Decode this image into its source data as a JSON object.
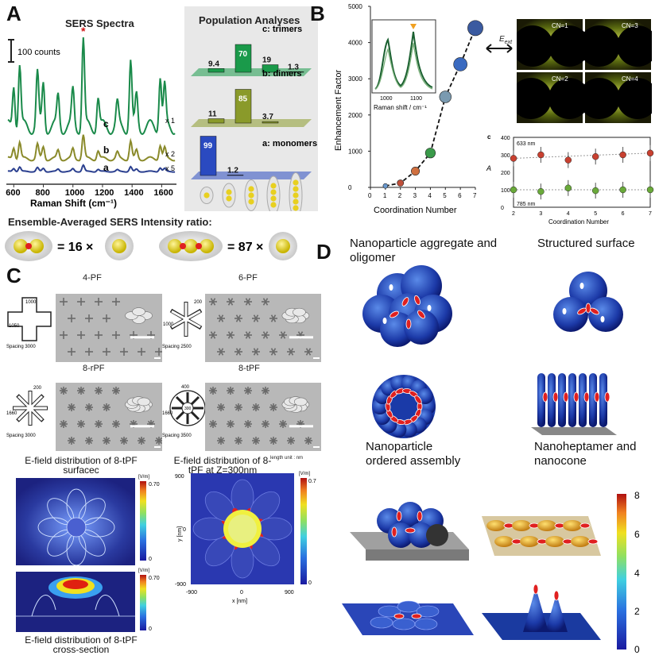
{
  "panels": {
    "A": "A",
    "B": "B",
    "C": "C",
    "D": "D"
  },
  "panelA": {
    "spectra_title": "SERS Spectra",
    "scale_bar": "100 counts",
    "xlabel": "Raman Shift (cm⁻¹)",
    "xticks": [
      "600",
      "800",
      "1000",
      "1200",
      "1400",
      "1600"
    ],
    "curve_labels": [
      "c",
      "b",
      "a"
    ],
    "multipliers": [
      "x 1",
      "x 2",
      "x 5"
    ],
    "star": "*",
    "pop_title": "Population Analyses",
    "pop_groups": [
      {
        "label": "c: trimers",
        "values": [
          "9.4",
          "70",
          "19",
          "1.3"
        ]
      },
      {
        "label": "b: dimers",
        "values": [
          "11",
          "85",
          "3.7"
        ]
      },
      {
        "label": "a: monomers",
        "values": [
          "99",
          "1.2"
        ]
      }
    ],
    "ratio_title": "Ensemble-Averaged SERS Intensity ratio:",
    "ratio_dimer": "= 16 ×",
    "ratio_trimer": "= 87 ×"
  },
  "panelB": {
    "ylabel": "Enhancement Factor",
    "xlabel": "Coordination Number",
    "yticks": [
      "0",
      "1000",
      "2000",
      "3000",
      "4000",
      "5000"
    ],
    "xticks": [
      "0",
      "1",
      "2",
      "3",
      "4",
      "5",
      "6",
      "7"
    ],
    "inset_xlabel": "Raman shift / cm⁻¹",
    "inset_xticks": [
      "1000",
      "1100"
    ],
    "eext": "E",
    "eext_sub": "ext",
    "cn_labels": [
      "CN=1",
      "CN=3",
      "CN=2",
      "CN=4"
    ],
    "small_label": "c",
    "small_ylabel": "A",
    "small_xlabel": "Coordination Number",
    "small_yticks": [
      "0",
      "100",
      "200",
      "300",
      "400"
    ],
    "small_xticks": [
      "2",
      "3",
      "4",
      "5",
      "6",
      "7"
    ],
    "nm633": "633 nm",
    "nm785": "785 nm"
  },
  "panelC": {
    "titles": [
      "4-PF",
      "6-PF",
      "8-rPF",
      "8-tPF"
    ],
    "spacings": [
      "Spacing 3000",
      "Spacing 2500",
      "Spacing 3000",
      "Spacing 3500"
    ],
    "dims": [
      "1000",
      "1050",
      "200",
      "1000",
      "200",
      "1660",
      "400",
      "1660",
      "300"
    ],
    "cap1": "E-field distribution of 8-tPF surfacec",
    "cap2": "E-field distribution of 8-tPF at Z=300nm",
    "cap2_unit": "length unit : nm",
    "cap3": "E-field distribution of 8-tPF cross-section",
    "cbar_unit": "[V/m]",
    "cbar_a": [
      "0.70",
      "0"
    ],
    "cbar_b": [
      "0.7",
      "0"
    ],
    "cbar_c": [
      "0.70",
      "0"
    ],
    "map_xticks": [
      "-900",
      "0",
      "900"
    ],
    "map_yticks": [
      "900",
      "0",
      "-900"
    ],
    "map_xlabel": "x [nm]",
    "map_ylabel": "y [nm]"
  },
  "panelD": {
    "labels": [
      "Nanoparticle aggregate and oligomer",
      "Structured surface",
      "Nanoparticle ordered assembly",
      "Nanoheptamer and nanocone"
    ],
    "cbar_ticks": [
      "8",
      "6",
      "4",
      "2",
      "0"
    ]
  },
  "colors": {
    "green": "#1a8a4a",
    "olive": "#8a8a2a",
    "navy": "#2a3f8f",
    "jet_low": "#1a1aa0",
    "jet_high": "#b01010"
  },
  "chart_data": [
    {
      "type": "line",
      "title": "SERS Spectra",
      "xlabel": "Raman Shift (cm⁻¹)",
      "xlim": [
        550,
        1700
      ],
      "series": [
        {
          "name": "c"
        },
        {
          "name": "b"
        },
        {
          "name": "a"
        }
      ]
    },
    {
      "type": "bar",
      "title": "Population Analyses",
      "series": [
        {
          "name": "c: trimers",
          "values": [
            9.4,
            70,
            19,
            1.3
          ]
        },
        {
          "name": "b: dimers",
          "values": [
            11,
            85,
            3.7
          ]
        },
        {
          "name": "a: monomers",
          "values": [
            99,
            1.2
          ]
        }
      ]
    },
    {
      "type": "scatter",
      "xlabel": "Coordination Number",
      "ylabel": "Enhancement Factor",
      "xlim": [
        0,
        7
      ],
      "ylim": [
        0,
        5000
      ],
      "x": [
        1,
        2,
        3,
        4,
        5,
        6,
        7
      ],
      "y": [
        40,
        120,
        450,
        950,
        2500,
        3400,
        4400
      ]
    },
    {
      "type": "scatter",
      "xlabel": "Coordination Number",
      "ylabel": "A",
      "xlim": [
        2,
        7
      ],
      "ylim": [
        0,
        400
      ],
      "series": [
        {
          "name": "633 nm",
          "x": [
            2,
            3,
            4,
            5,
            6,
            7
          ],
          "y": [
            280,
            300,
            270,
            290,
            300,
            310
          ]
        },
        {
          "name": "785 nm",
          "x": [
            2,
            3,
            4,
            5,
            6,
            7
          ],
          "y": [
            100,
            90,
            110,
            95,
            100,
            100
          ]
        }
      ]
    }
  ]
}
